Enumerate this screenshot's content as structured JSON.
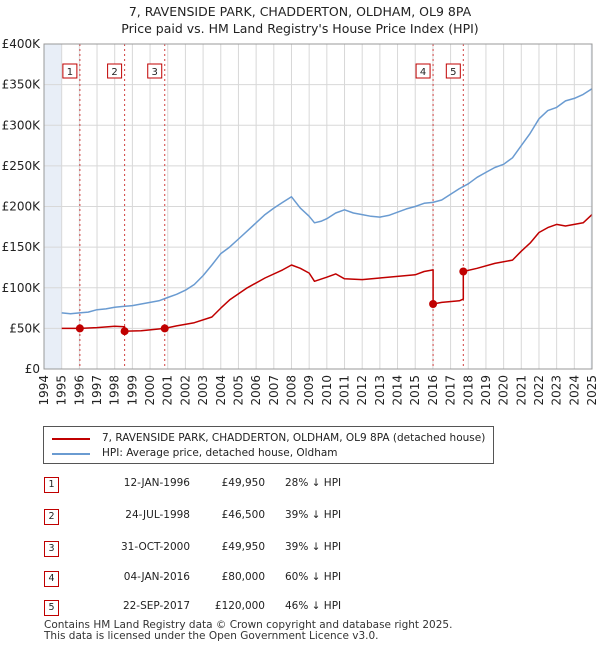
{
  "title_line1": "7, RAVENSIDE PARK, CHADDERTON, OLDHAM, OL9 8PA",
  "title_line2": "Price paid vs. HM Land Registry's House Price Index (HPI)",
  "legend": {
    "property": "7, RAVENSIDE PARK, CHADDERTON, OLDHAM, OL9 8PA (detached house)",
    "hpi": "HPI: Average price, detached house, Oldham"
  },
  "colors": {
    "property": "#c00000",
    "hpi": "#6a9bd1",
    "shade": "#e8eef7",
    "grid": "#d8d8d8"
  },
  "transactions": [
    {
      "num": "1",
      "date": "12-JAN-1996",
      "price": "£49,950",
      "hpi": "28% ↓ HPI"
    },
    {
      "num": "2",
      "date": "24-JUL-1998",
      "price": "£46,500",
      "hpi": "39% ↓ HPI"
    },
    {
      "num": "3",
      "date": "31-OCT-2000",
      "price": "£49,950",
      "hpi": "39% ↓ HPI"
    },
    {
      "num": "4",
      "date": "04-JAN-2016",
      "price": "£80,000",
      "hpi": "60% ↓ HPI"
    },
    {
      "num": "5",
      "date": "22-SEP-2017",
      "price": "£120,000",
      "hpi": "46% ↓ HPI"
    }
  ],
  "footer_line1": "Contains HM Land Registry data © Crown copyright and database right 2025.",
  "footer_line2": "This data is licensed under the Open Government Licence v3.0.",
  "chart_data": {
    "type": "line",
    "xlim": [
      1994,
      2025
    ],
    "ylim": [
      0,
      400000
    ],
    "y_ticks": [
      0,
      50000,
      100000,
      150000,
      200000,
      250000,
      300000,
      350000,
      400000
    ],
    "y_tick_labels": [
      "£0",
      "£50K",
      "£100K",
      "£150K",
      "£200K",
      "£250K",
      "£300K",
      "£350K",
      "£400K"
    ],
    "x_ticks": [
      1994,
      1995,
      1996,
      1997,
      1998,
      1999,
      2000,
      2001,
      2002,
      2003,
      2004,
      2005,
      2006,
      2007,
      2008,
      2009,
      2010,
      2011,
      2012,
      2013,
      2014,
      2015,
      2016,
      2017,
      2018,
      2019,
      2020,
      2021,
      2022,
      2023,
      2024,
      2025
    ],
    "x_tick_labels": [
      "1994",
      "1995",
      "1996",
      "1997",
      "1998",
      "1999",
      "2000",
      "2001",
      "2002",
      "2003",
      "2004",
      "2005",
      "2006",
      "2007",
      "2008",
      "2009",
      "2010",
      "2011",
      "2012",
      "2013",
      "2014",
      "2015",
      "2016",
      "2017",
      "2018",
      "2019",
      "2020",
      "2021",
      "2022",
      "2023",
      "2024",
      "2025"
    ],
    "shaded_ranges": [
      [
        1994,
        1995
      ],
      [
        2024.92,
        2025
      ]
    ],
    "sales": [
      {
        "label": "1",
        "x": 1996.03,
        "y": 49950
      },
      {
        "label": "2",
        "x": 1998.56,
        "y": 46500
      },
      {
        "label": "3",
        "x": 2000.83,
        "y": 49950
      },
      {
        "label": "4",
        "x": 2016.01,
        "y": 80000
      },
      {
        "label": "5",
        "x": 2017.72,
        "y": 120000
      }
    ],
    "series": [
      {
        "name": "7, RAVENSIDE PARK, CHADDERTON, OLDHAM, OL9 8PA (detached house)",
        "x": [
          1995.0,
          1996.03,
          1996.03,
          1997.0,
          1998.0,
          1998.56,
          1998.56,
          1999.5,
          2000.83,
          2000.83,
          2001.5,
          2002.5,
          2003.5,
          2004.0,
          2004.5,
          2005.5,
          2006.5,
          2007.5,
          2008.0,
          2008.5,
          2009.0,
          2009.3,
          2010.0,
          2010.5,
          2011.0,
          2012.0,
          2013.0,
          2014.0,
          2015.0,
          2015.5,
          2016.01,
          2016.01,
          2016.5,
          2017.5,
          2017.72,
          2017.72,
          2018.5,
          2019.5,
          2020.5,
          2021.0,
          2021.5,
          2022.0,
          2022.5,
          2023.0,
          2023.5,
          2024.0,
          2024.5,
          2025.0
        ],
        "values": [
          50000,
          49950,
          49950,
          51000,
          52500,
          52000,
          46500,
          47000,
          49950,
          49950,
          53000,
          57000,
          64000,
          75000,
          85000,
          100000,
          112000,
          122000,
          128000,
          124000,
          118000,
          108000,
          113000,
          117000,
          111000,
          110000,
          112000,
          114000,
          116000,
          120000,
          122000,
          80000,
          82000,
          84000,
          86000,
          120000,
          124000,
          130000,
          134000,
          145000,
          155000,
          168000,
          174000,
          178000,
          176000,
          178000,
          180000,
          190000
        ]
      },
      {
        "name": "HPI: Average price, detached house, Oldham",
        "x": [
          1995.0,
          1995.5,
          1996.0,
          1996.5,
          1997.0,
          1997.5,
          1998.0,
          1998.5,
          1999.0,
          1999.5,
          2000.0,
          2000.5,
          2001.0,
          2001.5,
          2002.0,
          2002.5,
          2003.0,
          2003.5,
          2004.0,
          2004.5,
          2005.0,
          2005.5,
          2006.0,
          2006.5,
          2007.0,
          2007.5,
          2008.0,
          2008.5,
          2009.0,
          2009.3,
          2009.7,
          2010.0,
          2010.5,
          2011.0,
          2011.5,
          2012.0,
          2012.5,
          2013.0,
          2013.5,
          2014.0,
          2014.5,
          2015.0,
          2015.5,
          2016.0,
          2016.5,
          2017.0,
          2017.5,
          2018.0,
          2018.5,
          2019.0,
          2019.5,
          2020.0,
          2020.5,
          2021.0,
          2021.5,
          2022.0,
          2022.5,
          2023.0,
          2023.5,
          2024.0,
          2024.5,
          2025.0
        ],
        "values": [
          69000,
          68000,
          69000,
          70000,
          73000,
          74000,
          76000,
          77000,
          78000,
          80000,
          82000,
          84000,
          88000,
          92000,
          97000,
          104000,
          115000,
          128000,
          142000,
          150000,
          160000,
          170000,
          180000,
          190000,
          198000,
          205000,
          212000,
          198000,
          188000,
          180000,
          182000,
          185000,
          192000,
          196000,
          192000,
          190000,
          188000,
          187000,
          189000,
          193000,
          197000,
          200000,
          204000,
          205000,
          208000,
          215000,
          222000,
          228000,
          236000,
          242000,
          248000,
          252000,
          260000,
          275000,
          290000,
          308000,
          318000,
          322000,
          330000,
          333000,
          338000,
          345000
        ]
      }
    ]
  }
}
